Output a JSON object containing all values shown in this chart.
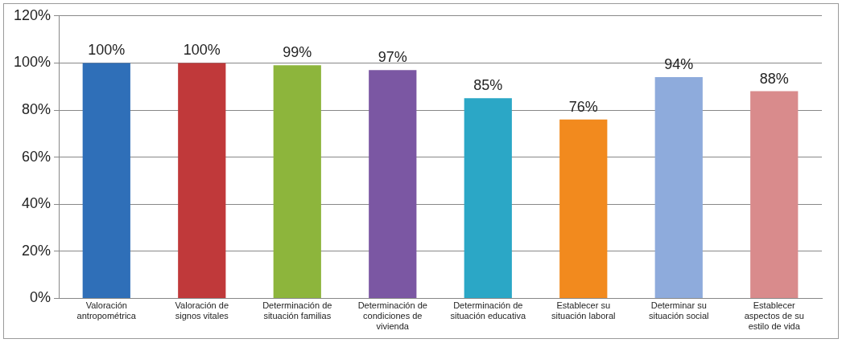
{
  "chart_data": {
    "type": "bar",
    "categories": [
      "Valoración antropométrica",
      "Valoración de signos vitales",
      "Determinación de situación familias",
      "Determinación de condiciones de vivienda",
      "Determinación de situación educativa",
      "Establecer su situación laboral",
      "Determinar su situación social",
      "Establecer aspectos de su estilo de vida"
    ],
    "values": [
      100,
      100,
      99,
      97,
      85,
      76,
      94,
      88
    ],
    "colors": [
      "#2f6fb8",
      "#c0393a",
      "#8db53c",
      "#7b57a3",
      "#2ba7c6",
      "#f28a1e",
      "#8eabdc",
      "#d98b8c"
    ],
    "value_labels": [
      "100%",
      "100%",
      "99%",
      "97%",
      "85%",
      "76%",
      "94%",
      "88%"
    ],
    "ylim": [
      0,
      120
    ],
    "yticks": [
      {
        "value": 0,
        "label": "0%"
      },
      {
        "value": 20,
        "label": "20%"
      },
      {
        "value": 40,
        "label": "40%"
      },
      {
        "value": 60,
        "label": "60%"
      },
      {
        "value": 80,
        "label": "80%"
      },
      {
        "value": 100,
        "label": "100%"
      },
      {
        "value": 120,
        "label": "120%"
      }
    ],
    "grid": "y",
    "legend": false
  }
}
